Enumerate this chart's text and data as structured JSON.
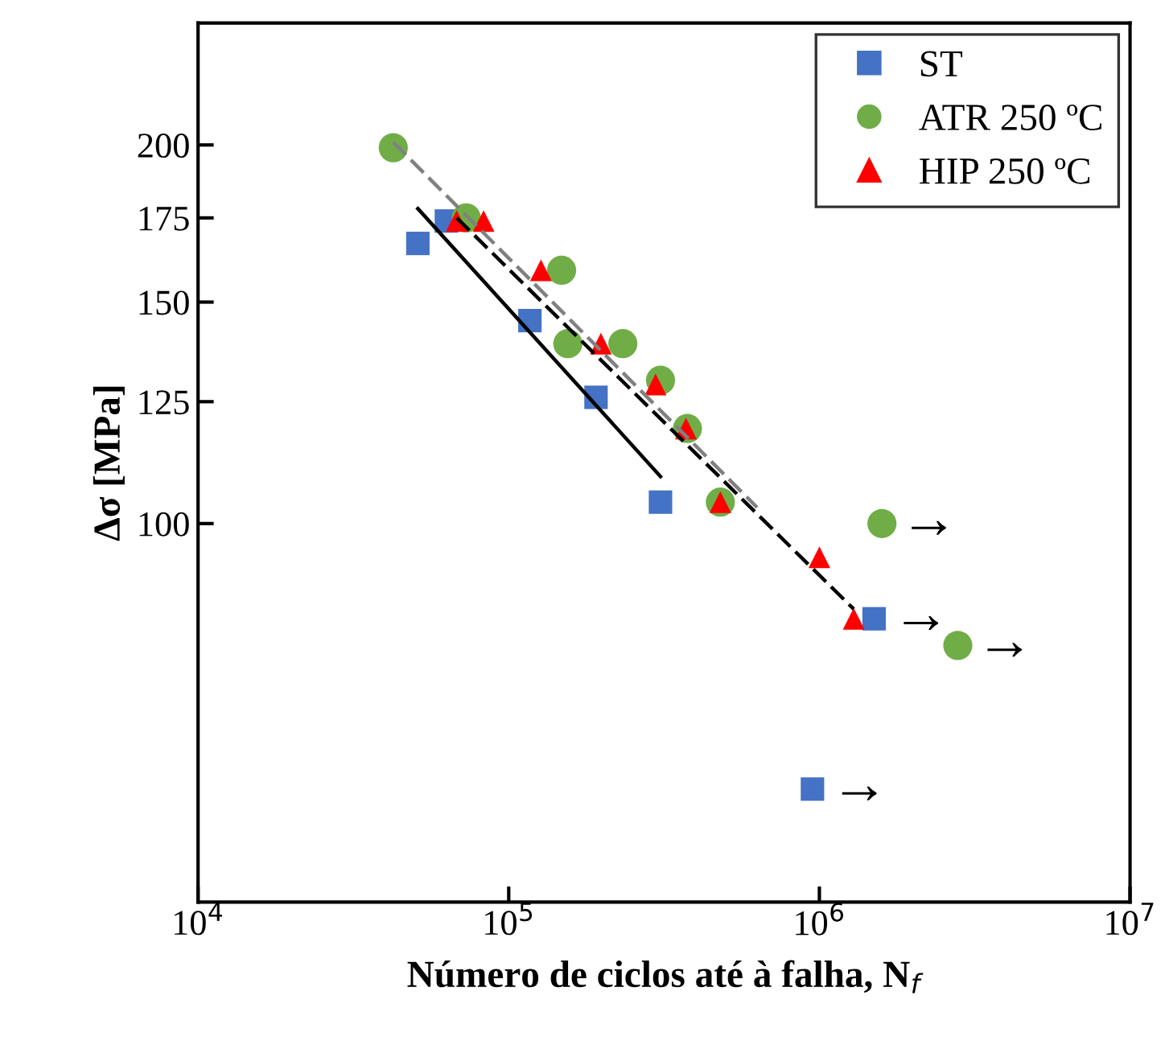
{
  "chart_data": {
    "type": "scatter",
    "xlabel": "Número de ciclos até à falha, N$_{f}$",
    "ylabel": "Δσ [MPa]",
    "log": "xy",
    "xlim": [
      10000,
      10000000
    ],
    "xticks": [
      {
        "value": 10000,
        "label": "10$^{4}$"
      },
      {
        "value": 100000,
        "label": "10$^{5}$"
      },
      {
        "value": 1000000,
        "label": "10$^{6}$"
      },
      {
        "value": 10000000,
        "label": "10$^{7}$"
      }
    ],
    "ylim": [
      50,
      250
    ],
    "yticks": [
      100,
      125,
      150,
      175,
      200
    ],
    "grid": false,
    "legend": "top right",
    "series": [
      {
        "name": "ST",
        "marker": "square",
        "color": "#4472c4",
        "x": [
          51000,
          63000,
          117000,
          191000,
          308000,
          1500000,
          950000
        ],
        "values": [
          167,
          174,
          145,
          126,
          104,
          84,
          61.5
        ]
      },
      {
        "name": "ATR 250 ºC",
        "marker": "circle",
        "color": "#70ad47",
        "x": [
          42500,
          73000,
          148000,
          155000,
          233000,
          308000,
          376000,
          480000,
          1590000,
          2790000
        ],
        "values": [
          199,
          175,
          159,
          139,
          139,
          130,
          119,
          104,
          100,
          80
        ]
      },
      {
        "name": "HIP 250 ºC",
        "marker": "triangle",
        "color": "#ff0000",
        "x": [
          68000,
          83000,
          127000,
          198000,
          297000,
          372000,
          480000,
          1000000,
          1290000
        ],
        "values": [
          174,
          174,
          159,
          139,
          129,
          119,
          104,
          94,
          84
        ]
      },
      {
        "type": "line",
        "color": "#000000",
        "line_style": "solid",
        "x": [
          51000,
          308000
        ],
        "values": [
          178,
          109
        ]
      },
      {
        "type": "line",
        "color": "#808080",
        "line_style": "dashed",
        "x": [
          42500,
          630000
        ],
        "values": [
          201,
          103
        ]
      },
      {
        "type": "line",
        "color": "#000000",
        "line_style": "dashed",
        "x": [
          68000,
          1290000
        ],
        "values": [
          175,
          85.5
        ]
      }
    ],
    "annotations": [
      {
        "text": "→",
        "x": 1500000,
        "y": 84
      },
      {
        "text": "→",
        "x": 950000,
        "y": 61.5
      },
      {
        "text": "→",
        "x": 1590000,
        "y": 100
      },
      {
        "text": "→",
        "x": 2790000,
        "y": 80
      }
    ]
  }
}
